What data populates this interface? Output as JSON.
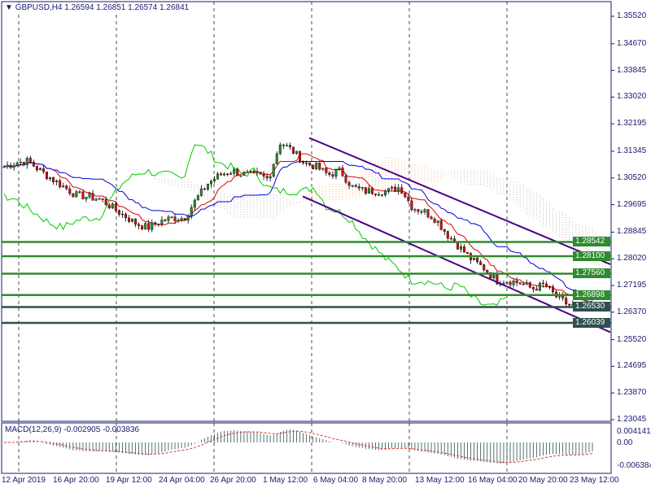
{
  "header": {
    "symbol": "GBPUSD,H4",
    "open": "1.26594",
    "high": "1.26851",
    "low": "1.26574",
    "close": "1.26841"
  },
  "macd": {
    "label": "MACD(12,26,9) -0.002905 -0.003836",
    "ticks": [
      "0.004141",
      "0.00",
      "-0.006384"
    ]
  },
  "colors": {
    "bull": "#2e8b2e",
    "bear": "#d01010",
    "level_green": "#2e8b2e",
    "level_dark": "#2f4f4f",
    "channel": "#4b0082",
    "tenkan": "#e00000",
    "kijun": "#0000e0",
    "chikou": "#00cc00",
    "cloud_a": "#f4a460",
    "cloud_b": "#a9a9a9",
    "grid": "#000000",
    "macd_hist": "#2f4f4f",
    "macd_signal": "#d04040"
  },
  "chart_data": {
    "type": "candlestick",
    "title": "GBPUSD,H4",
    "ylim": [
      1.23045,
      1.3552
    ],
    "y_ticks": [
      "1.35520",
      "1.34670",
      "1.33845",
      "1.33020",
      "1.32195",
      "1.31345",
      "1.30520",
      "1.29695",
      "1.28845",
      "1.28020",
      "1.27195",
      "1.26370",
      "1.25520",
      "1.24695",
      "1.23870",
      "1.23045"
    ],
    "x_ticks": [
      "12 Apr 2019",
      "16 Apr 20:00",
      "19 Apr 12:00",
      "24 Apr 04:00",
      "26 Apr 20:00",
      "1 May 12:00",
      "6 May 04:00",
      "8 May 20:00",
      "13 May 12:00",
      "16 May 04:00",
      "20 May 20:00",
      "23 May 12:00"
    ],
    "close": [
      1.30867,
      1.30993,
      1.31043,
      1.30742,
      1.3049,
      1.30239,
      1.29987,
      1.29937,
      1.29861,
      1.2961,
      1.29358,
      1.29107,
      1.28981,
      1.29182,
      1.29283,
      1.29283,
      1.29861,
      1.30364,
      1.30616,
      1.30742,
      1.30616,
      1.30616,
      1.3049,
      1.31622,
      1.3137,
      1.30993,
      1.30867,
      1.30616,
      1.30742,
      1.30239,
      1.30113,
      1.30113,
      1.30113,
      1.30239,
      1.2961,
      1.29484,
      1.29233,
      1.2873,
      1.28352,
      1.27975,
      1.27724,
      1.27347,
      1.27347,
      1.27271,
      1.27095,
      1.2722,
      1.26843,
      1.26592,
      1.26516,
      1.26841
    ],
    "levels": [
      {
        "value": "1.28542",
        "type": "green"
      },
      {
        "value": "1.28100",
        "type": "green"
      },
      {
        "value": "1.27560",
        "type": "green"
      },
      {
        "value": "1.26898",
        "type": "green"
      },
      {
        "value": "1.26530",
        "type": "dark"
      },
      {
        "value": "1.26039",
        "type": "dark"
      }
    ],
    "channel": {
      "upper": [
        [
          "6 May 04:00",
          1.3176
        ],
        [
          "23 May 20:00",
          1.2785
        ]
      ],
      "lower": [
        [
          "6 May 00:00",
          1.2995
        ],
        [
          "23 May 20:00",
          1.2575
        ]
      ]
    }
  }
}
